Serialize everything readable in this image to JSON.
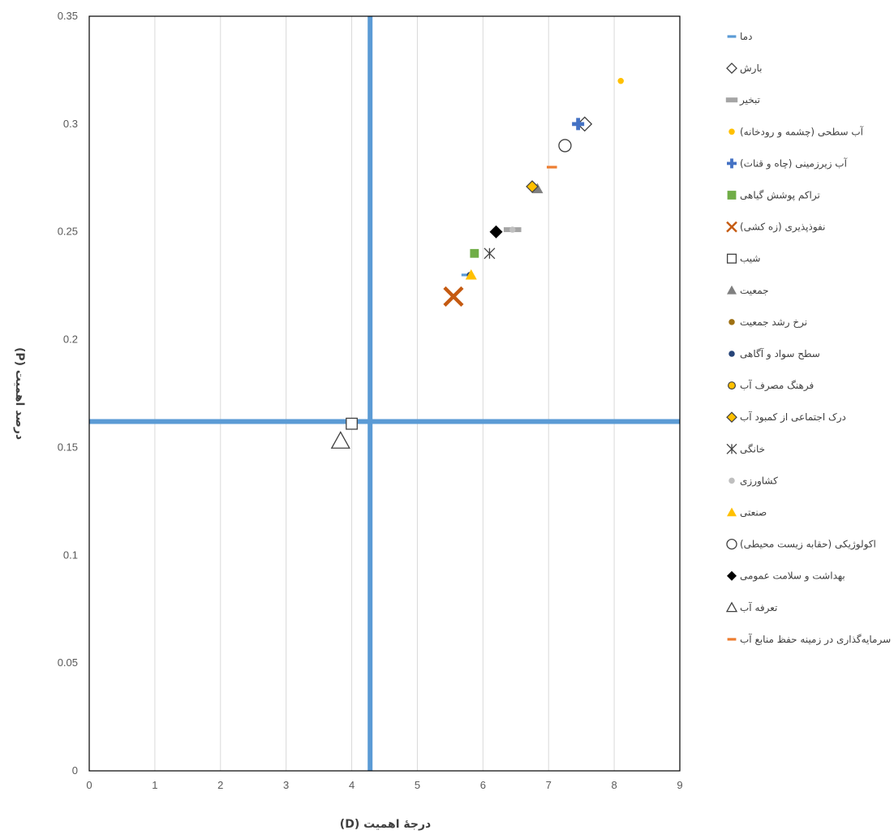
{
  "chart_data": {
    "type": "scatter",
    "title": "",
    "xlabel": "درجهٔ اهمیت (D)",
    "ylabel": "درصد اهمیت (P)",
    "xlim": [
      0,
      9
    ],
    "ylim": [
      0,
      0.35
    ],
    "x_ticks": [
      "0",
      "1",
      "2",
      "3",
      "4",
      "5",
      "6",
      "7",
      "8",
      "9"
    ],
    "y_ticks": [
      "0",
      "0.05",
      "0.1",
      "0.15",
      "0.2",
      "0.25",
      "0.3",
      "0.35"
    ],
    "grid": "vertical",
    "legend_position": "right",
    "reference_lines": {
      "x": 4.28,
      "y": 0.162,
      "color": "#5b9bd5"
    },
    "series": [
      {
        "name": "دما",
        "x": 5.75,
        "y": 0.23,
        "marker": "dash",
        "color": "#5b9bd5"
      },
      {
        "name": "بارش",
        "x": 7.55,
        "y": 0.3,
        "marker": "diamond-open",
        "color": "#404040"
      },
      {
        "name": "تبخیر",
        "x": 6.45,
        "y": 0.251,
        "marker": "bar",
        "color": "#a5a5a5"
      },
      {
        "name": "آب سطحی (چشمه و رودخانه)",
        "x": 8.1,
        "y": 0.32,
        "marker": "circle",
        "color": "#ffc000"
      },
      {
        "name": "آب زیرزمینی (چاه و قنات)",
        "x": 7.45,
        "y": 0.3,
        "marker": "plus",
        "color": "#4472c4"
      },
      {
        "name": "تراکم پوشش گیاهی",
        "x": 5.87,
        "y": 0.24,
        "marker": "square",
        "color": "#70ad47"
      },
      {
        "name": "نفوذپذیری (زه کشی)",
        "x": 5.55,
        "y": 0.22,
        "marker": "x",
        "color": "#c55a11"
      },
      {
        "name": "شیب",
        "x": 4.0,
        "y": 0.161,
        "marker": "square-open",
        "color": "#404040"
      },
      {
        "name": "جمعیت",
        "x": 6.83,
        "y": 0.27,
        "marker": "triangle",
        "color": "#7f7f7f"
      },
      {
        "name": "نرخ رشد جمعیت",
        "x": 6.75,
        "y": 0.271,
        "marker": "circle",
        "color": "#9e7012"
      },
      {
        "name": "سطح سواد و آگاهی",
        "x": 5.8,
        "y": 0.23,
        "marker": "circle",
        "color": "#264478"
      },
      {
        "name": "فرهنگ مصرف آب",
        "x": 6.75,
        "y": 0.271,
        "marker": "circle-outlined",
        "color": "#ffc000"
      },
      {
        "name": "درک اجتماعی از کمبود آب",
        "x": 6.75,
        "y": 0.271,
        "marker": "diamond-outlined",
        "color": "#ffc000"
      },
      {
        "name": "خانگی",
        "x": 6.1,
        "y": 0.24,
        "marker": "asterisk",
        "color": "#404040"
      },
      {
        "name": "کشاورزی",
        "x": 6.45,
        "y": 0.251,
        "marker": "circle",
        "color": "#bfbfbf"
      },
      {
        "name": "صنعتی",
        "x": 5.82,
        "y": 0.23,
        "marker": "triangle",
        "color": "#ffc000"
      },
      {
        "name": "اکولوژیکی (حقابه زیست محیطی)",
        "x": 7.25,
        "y": 0.29,
        "marker": "circle-open",
        "color": "#404040"
      },
      {
        "name": "بهداشت و سلامت عمومی",
        "x": 6.2,
        "y": 0.25,
        "marker": "diamond",
        "color": "#000000"
      },
      {
        "name": "تعرفه آب",
        "x": 3.83,
        "y": 0.153,
        "marker": "triangle-open",
        "color": "#404040"
      },
      {
        "name": "سرمایه‌گذاری در زمینه حفظ منابع آب",
        "x": 7.05,
        "y": 0.28,
        "marker": "dash",
        "color": "#ed7d31"
      }
    ]
  }
}
